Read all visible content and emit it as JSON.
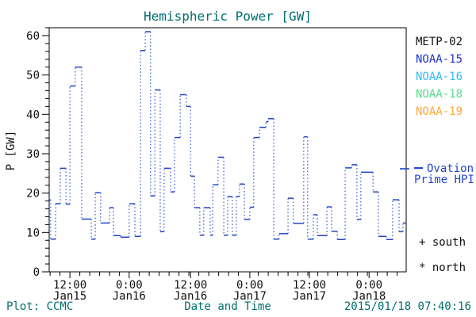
{
  "footer": {
    "left": "Plot: CCMC",
    "right": "2015/01/18 07:40:16"
  },
  "legend": {
    "satellites": [
      {
        "label": "METP-02",
        "color": "#111111"
      },
      {
        "label": "NOAA-15",
        "color": "#2233cc"
      },
      {
        "label": "NOAA-16",
        "color": "#33bbee"
      },
      {
        "label": "NOAA-18",
        "color": "#55dd88"
      },
      {
        "label": "NOAA-19",
        "color": "#ffaa33"
      }
    ],
    "model": {
      "line1": "Ovation",
      "line2": "Prime HPI",
      "color": "#2244cc"
    }
  },
  "markers": {
    "south": {
      "symbol": "+",
      "label": "south"
    },
    "north": {
      "symbol": "*",
      "label": "north"
    }
  },
  "colors": {
    "title_text": "#006e6e",
    "axis_text": "#111111",
    "axis_line": "#000000",
    "curve": "#2244cc",
    "background": "#ffffff"
  },
  "chart_data": {
    "type": "line",
    "subtype": "step",
    "title": "Hemispheric Power [GW]",
    "ylabel": "P [GW]",
    "xlabel": "Date and Time",
    "ylim": [
      0,
      62
    ],
    "yticks": [
      0,
      10,
      20,
      30,
      40,
      50,
      60
    ],
    "y_minor_step": 2,
    "x_total_hours": 72,
    "x_minor_step_hours": 2,
    "xticks": [
      {
        "time": "12:00",
        "date": "Jan15",
        "frac": 0.058
      },
      {
        "time": "0:00",
        "date": "Jan16",
        "frac": 0.224
      },
      {
        "time": "12:00",
        "date": "Jan16",
        "frac": 0.396
      },
      {
        "time": "0:00",
        "date": "Jan17",
        "frac": 0.562
      },
      {
        "time": "12:00",
        "date": "Jan17",
        "frac": 0.729
      },
      {
        "time": "0:00",
        "date": "Jan18",
        "frac": 0.896
      }
    ],
    "series": [
      {
        "name": "Ovation Prime HPI",
        "color": "#2244cc",
        "units": "GW",
        "steps": [
          [
            0.0,
            18.3
          ],
          [
            0.004,
            8.3
          ],
          [
            0.018,
            17.3
          ],
          [
            0.031,
            26.3
          ],
          [
            0.047,
            17.2
          ],
          [
            0.058,
            47.2
          ],
          [
            0.073,
            52.0
          ],
          [
            0.091,
            13.4
          ],
          [
            0.118,
            8.3
          ],
          [
            0.129,
            20.1
          ],
          [
            0.144,
            12.4
          ],
          [
            0.169,
            16.3
          ],
          [
            0.18,
            9.2
          ],
          [
            0.2,
            8.8
          ],
          [
            0.224,
            17.3
          ],
          [
            0.24,
            9.0
          ],
          [
            0.256,
            56.2
          ],
          [
            0.269,
            61.0
          ],
          [
            0.284,
            19.3
          ],
          [
            0.296,
            46.2
          ],
          [
            0.311,
            10.2
          ],
          [
            0.322,
            26.3
          ],
          [
            0.34,
            20.3
          ],
          [
            0.351,
            34.1
          ],
          [
            0.367,
            45.0
          ],
          [
            0.384,
            42.0
          ],
          [
            0.396,
            24.3
          ],
          [
            0.407,
            16.3
          ],
          [
            0.422,
            9.3
          ],
          [
            0.433,
            16.3
          ],
          [
            0.451,
            9.3
          ],
          [
            0.458,
            22.1
          ],
          [
            0.473,
            29.1
          ],
          [
            0.489,
            9.3
          ],
          [
            0.5,
            19.1
          ],
          [
            0.513,
            9.3
          ],
          [
            0.524,
            19.1
          ],
          [
            0.533,
            22.3
          ],
          [
            0.547,
            13.3
          ],
          [
            0.562,
            16.4
          ],
          [
            0.573,
            34.1
          ],
          [
            0.589,
            36.7
          ],
          [
            0.607,
            38.1
          ],
          [
            0.613,
            38.9
          ],
          [
            0.629,
            8.3
          ],
          [
            0.644,
            9.7
          ],
          [
            0.669,
            18.7
          ],
          [
            0.684,
            12.3
          ],
          [
            0.713,
            34.3
          ],
          [
            0.724,
            8.3
          ],
          [
            0.74,
            14.5
          ],
          [
            0.751,
            9.2
          ],
          [
            0.778,
            16.5
          ],
          [
            0.791,
            10.3
          ],
          [
            0.807,
            8.2
          ],
          [
            0.829,
            26.4
          ],
          [
            0.847,
            27.2
          ],
          [
            0.862,
            13.3
          ],
          [
            0.873,
            25.3
          ],
          [
            0.907,
            20.3
          ],
          [
            0.922,
            9.0
          ],
          [
            0.944,
            8.2
          ],
          [
            0.962,
            18.3
          ],
          [
            0.98,
            10.2
          ],
          [
            0.991,
            12.4
          ]
        ]
      }
    ],
    "grid": false,
    "legend_position": "right"
  }
}
